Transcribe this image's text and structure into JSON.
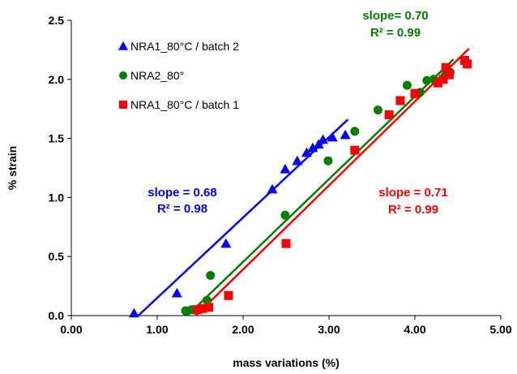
{
  "chart_data": {
    "type": "scatter",
    "title": "",
    "xlabel": "mass variations (%)",
    "ylabel": "% strain",
    "xlim": [
      0,
      5
    ],
    "ylim": [
      0,
      2.5
    ],
    "x_ticks": [
      "0.00",
      "1.00",
      "2.00",
      "3.00",
      "4.00",
      "5.00"
    ],
    "y_ticks": [
      "0.0",
      "0.5",
      "1.0",
      "1.5",
      "2.0",
      "2.5"
    ],
    "grid": false,
    "legend_placement": "top-left",
    "series": [
      {
        "name": "NRA1_80°C / batch 2",
        "color": "#0000ff",
        "marker": "triangle",
        "points": [
          [
            0.73,
            0.02
          ],
          [
            1.23,
            0.19
          ],
          [
            1.8,
            0.61
          ],
          [
            2.34,
            1.07
          ],
          [
            2.49,
            1.24
          ],
          [
            2.63,
            1.31
          ],
          [
            2.74,
            1.38
          ],
          [
            2.81,
            1.42
          ],
          [
            2.88,
            1.45
          ],
          [
            2.93,
            1.49
          ],
          [
            3.04,
            1.51
          ],
          [
            3.19,
            1.53
          ]
        ],
        "fit_line": [
          [
            0.78,
            0.0
          ],
          [
            3.22,
            1.66
          ]
        ],
        "annotation": [
          "slope = 0.68",
          "R² = 0.98"
        ]
      },
      {
        "name": "NRA2_80°",
        "color": "#008000",
        "marker": "circle",
        "points": [
          [
            1.33,
            0.04
          ],
          [
            1.4,
            0.05
          ],
          [
            1.58,
            0.13
          ],
          [
            1.62,
            0.34
          ],
          [
            2.49,
            0.85
          ],
          [
            2.99,
            1.31
          ],
          [
            3.3,
            1.56
          ],
          [
            3.57,
            1.74
          ],
          [
            3.91,
            1.95
          ],
          [
            4.06,
            1.89
          ],
          [
            4.14,
            1.99
          ],
          [
            4.22,
            2.0
          ],
          [
            4.35,
            2.03
          ],
          [
            4.41,
            2.06
          ]
        ],
        "fit_line": [
          [
            1.35,
            0.0
          ],
          [
            4.45,
            2.17
          ]
        ],
        "annotation": [
          "slope= 0.70",
          "R² = 0.99"
        ]
      },
      {
        "name": "NRA1_80°C / batch 1",
        "color": "#ff0000",
        "marker": "square",
        "points": [
          [
            1.47,
            0.05
          ],
          [
            1.53,
            0.06
          ],
          [
            1.6,
            0.07
          ],
          [
            1.83,
            0.17
          ],
          [
            2.5,
            0.61
          ],
          [
            3.3,
            1.4
          ],
          [
            3.7,
            1.7
          ],
          [
            3.83,
            1.82
          ],
          [
            4.0,
            1.88
          ],
          [
            4.27,
            1.97
          ],
          [
            4.33,
            2.0
          ],
          [
            4.36,
            2.1
          ],
          [
            4.4,
            2.04
          ],
          [
            4.58,
            2.16
          ],
          [
            4.61,
            2.13
          ]
        ],
        "fit_line": [
          [
            1.45,
            0.0
          ],
          [
            4.63,
            2.26
          ]
        ],
        "annotation": [
          "slope = 0.71",
          "R² = 0.99"
        ]
      }
    ]
  }
}
